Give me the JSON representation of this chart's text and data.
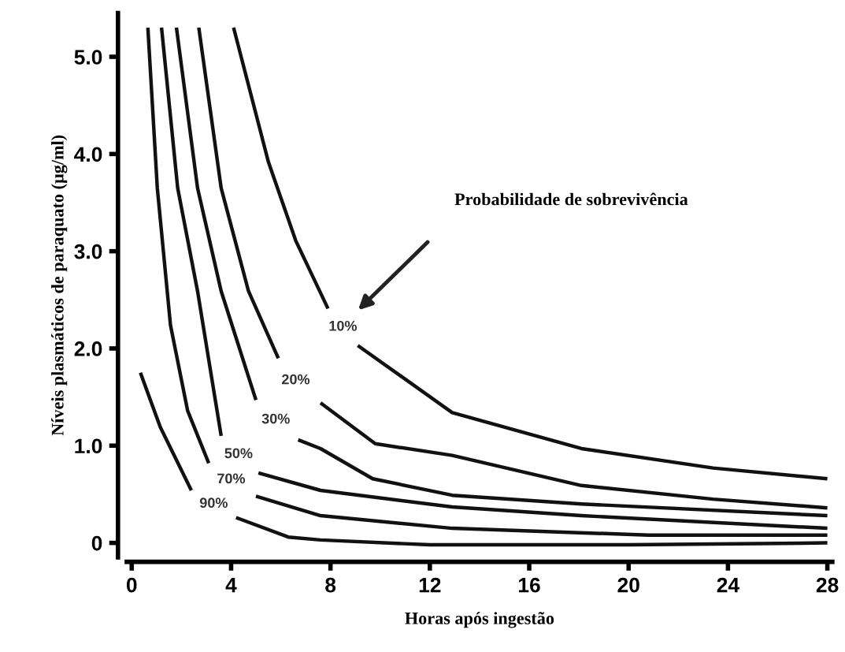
{
  "chart_data": {
    "type": "line",
    "xlabel": "Horas após ingestão",
    "ylabel": "Níveis plasmáticos de paraquato (µg/ml)",
    "xlim": [
      -0.2,
      28.2
    ],
    "ylim": [
      -0.15,
      5.45
    ],
    "xticks": [
      0,
      4,
      8,
      12,
      16,
      20,
      24,
      28
    ],
    "yticks": [
      0,
      {
        "value": 1,
        "label": "1.0"
      },
      {
        "value": 2,
        "label": "2.0"
      },
      {
        "value": 3,
        "label": "3.0"
      },
      {
        "value": 4,
        "label": "4.0"
      },
      {
        "value": 5,
        "label": "5.0"
      }
    ],
    "grid": false,
    "legend": false,
    "marker": "none",
    "line_style": "solid",
    "annotations": [
      "Probabilidade de sobrevivência"
    ],
    "series": [
      {
        "name": "10%",
        "color": "#111111",
        "x": [
          4.1,
          5.5,
          6.6,
          7.9,
          8.5,
          9.1,
          12.9,
          18.1,
          23.4,
          28
        ],
        "values": [
          5.3,
          3.92,
          3.11,
          2.41,
          null,
          2.03,
          1.34,
          0.97,
          0.77,
          0.66
        ]
      },
      {
        "name": "20%",
        "color": "#111111",
        "x": [
          2.7,
          3.6,
          4.7,
          5.9,
          6.6,
          7.6,
          9.8,
          12.9,
          18.1,
          23.4,
          28
        ],
        "values": [
          5.3,
          3.65,
          2.59,
          1.9,
          null,
          1.44,
          1.02,
          0.9,
          0.59,
          0.45,
          0.36
        ]
      },
      {
        "name": "30%",
        "color": "#111111",
        "x": [
          1.8,
          2.65,
          3.6,
          5.0,
          5.8,
          6.7,
          7.6,
          9.7,
          12.9,
          18.1,
          28
        ],
        "values": [
          5.3,
          3.65,
          2.59,
          1.47,
          null,
          1.06,
          0.97,
          0.66,
          0.49,
          0.4,
          0.28
        ]
      },
      {
        "name": "50%",
        "color": "#111111",
        "x": [
          1.2,
          1.85,
          2.65,
          3.6,
          4.3,
          5.1,
          7.6,
          12.9,
          18.1,
          28
        ],
        "values": [
          5.3,
          3.65,
          2.59,
          1.1,
          null,
          0.72,
          0.54,
          0.37,
          0.28,
          0.15
        ]
      },
      {
        "name": "70%",
        "color": "#111111",
        "x": [
          0.65,
          1.03,
          1.56,
          2.25,
          3.1,
          4.0,
          5.0,
          7.6,
          12.9,
          20.8,
          28
        ],
        "values": [
          5.3,
          3.65,
          2.24,
          1.36,
          0.82,
          null,
          0.48,
          0.28,
          0.15,
          0.08,
          0.08
        ]
      },
      {
        "name": "90%",
        "color": "#111111",
        "x": [
          0.35,
          1.15,
          2.4,
          3.3,
          4.2,
          6.3,
          7.6,
          12,
          20,
          28
        ],
        "values": [
          1.75,
          1.19,
          0.54,
          null,
          0.26,
          0.06,
          0.03,
          -0.02,
          -0.02,
          0.0
        ]
      }
    ]
  }
}
